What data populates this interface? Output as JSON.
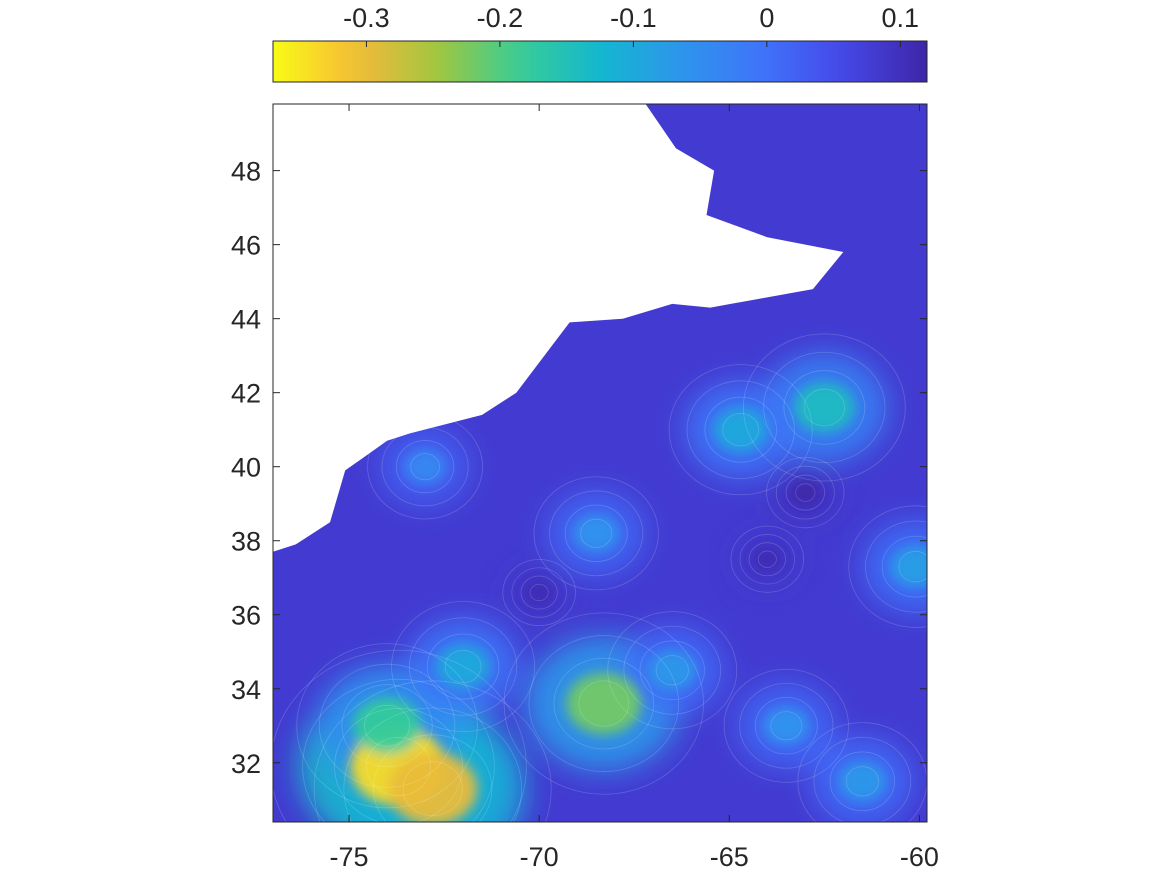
{
  "chart_data": {
    "type": "heatmap",
    "colormap": "parula",
    "colorbar": {
      "location": "top",
      "range": [
        -0.37,
        0.12
      ],
      "ticks": [
        -0.3,
        -0.2,
        -0.1,
        0,
        0.1
      ],
      "tick_labels": [
        "-0.3",
        "-0.2",
        "-0.1",
        "0",
        "0.1"
      ]
    },
    "x_range": [
      -77,
      -59.8
    ],
    "y_range": [
      30.4,
      49.8
    ],
    "x_ticks": [
      -75,
      -70,
      -65,
      -60
    ],
    "x_tick_labels": [
      "-75",
      "-70",
      "-65",
      "-60"
    ],
    "y_ticks": [
      32,
      34,
      36,
      38,
      40,
      42,
      44,
      46,
      48
    ],
    "y_tick_labels": [
      "32",
      "34",
      "36",
      "38",
      "40",
      "42",
      "44",
      "46",
      "48"
    ],
    "background_value": 0.08,
    "features": [
      {
        "label": "minimum",
        "lon": -73.7,
        "lat": 31.9,
        "value": -0.34
      },
      {
        "label": "minimum",
        "lon": -72.8,
        "lat": 31.3,
        "value": -0.3
      },
      {
        "label": "minimum",
        "lon": -68.3,
        "lat": 33.6,
        "value": -0.22
      },
      {
        "label": "minimum",
        "lon": -74.0,
        "lat": 33.0,
        "value": -0.18
      },
      {
        "label": "minimum",
        "lon": -62.5,
        "lat": 41.6,
        "value": -0.14
      },
      {
        "label": "minimum",
        "lon": -64.7,
        "lat": 41.0,
        "value": -0.1
      },
      {
        "label": "minimum",
        "lon": -60.1,
        "lat": 37.3,
        "value": -0.08
      },
      {
        "label": "minimum",
        "lon": -72.0,
        "lat": 34.6,
        "value": -0.1
      },
      {
        "label": "minimum",
        "lon": -68.5,
        "lat": 38.2,
        "value": -0.06
      },
      {
        "label": "minimum",
        "lon": -73.0,
        "lat": 40.0,
        "value": -0.04
      },
      {
        "label": "minimum",
        "lon": -66.5,
        "lat": 34.5,
        "value": -0.07
      },
      {
        "label": "minimum",
        "lon": -63.5,
        "lat": 33.0,
        "value": -0.06
      },
      {
        "label": "minimum",
        "lon": -61.5,
        "lat": 31.5,
        "value": -0.07
      },
      {
        "label": "maximum",
        "lon": -63.0,
        "lat": 39.3,
        "value": 0.12
      },
      {
        "label": "maximum",
        "lon": -64.0,
        "lat": 37.5,
        "value": 0.11
      },
      {
        "label": "maximum",
        "lon": -70.0,
        "lat": 36.6,
        "value": 0.11
      }
    ],
    "land_mask_polygon": [
      [
        -77.0,
        49.8
      ],
      [
        -67.2,
        49.8
      ],
      [
        -66.4,
        48.6
      ],
      [
        -65.4,
        48.0
      ],
      [
        -65.6,
        46.8
      ],
      [
        -64.0,
        46.2
      ],
      [
        -62.0,
        45.8
      ],
      [
        -62.8,
        44.8
      ],
      [
        -65.5,
        44.3
      ],
      [
        -66.5,
        44.4
      ],
      [
        -67.8,
        44.0
      ],
      [
        -69.2,
        43.9
      ],
      [
        -70.6,
        42.0
      ],
      [
        -71.5,
        41.4
      ],
      [
        -73.4,
        40.9
      ],
      [
        -74.0,
        40.7
      ],
      [
        -75.1,
        39.9
      ],
      [
        -75.5,
        38.5
      ],
      [
        -76.4,
        37.9
      ],
      [
        -77.0,
        37.7
      ]
    ],
    "grid": false
  }
}
